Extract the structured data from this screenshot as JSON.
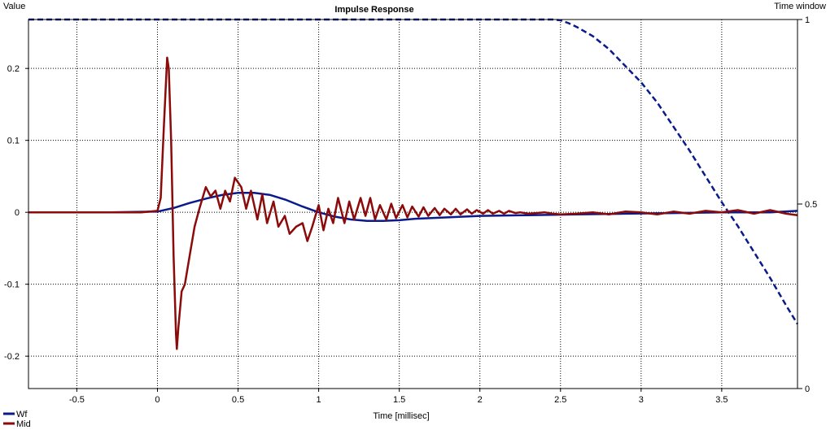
{
  "chart_data": {
    "type": "line",
    "title": "Impulse Response",
    "xlabel": "Time [millisec]",
    "ylabel": "Value",
    "y2label": "Time window",
    "xlim": [
      -0.8,
      3.97
    ],
    "ylim": [
      -0.245,
      0.268
    ],
    "y2lim": [
      0,
      1
    ],
    "x_ticks": [
      -0.5,
      0,
      0.5,
      1,
      1.5,
      2,
      2.5,
      3,
      3.5
    ],
    "x_tick_labels": [
      "-0.5",
      "0",
      "0.5",
      "1",
      "1.5",
      "2",
      "2.5",
      "3",
      "3.5"
    ],
    "y_ticks": [
      0.2,
      0.1,
      0,
      -0.1,
      -0.2
    ],
    "y_tick_labels": [
      "0.2",
      "0.1",
      "0",
      "-0.1",
      "-0.2"
    ],
    "y2_ticks": [
      1,
      0.5,
      0
    ],
    "y2_tick_labels": [
      "1",
      "0.5",
      "0"
    ],
    "grid": true,
    "legend_position": "bottom-left",
    "colors": {
      "window": "#0a1a8a",
      "wf": "#0a1a8a",
      "mid": "#8b0a0a",
      "grid": "#000000",
      "frame": "#000000"
    },
    "series": [
      {
        "name": "Time window",
        "axis": "right",
        "style": "dashed",
        "color": "#0a1a8a",
        "x": [
          -0.8,
          2.45,
          2.5,
          2.55,
          2.6,
          2.7,
          2.8,
          2.9,
          3.0,
          3.1,
          3.2,
          3.3,
          3.4,
          3.5,
          3.6,
          3.7,
          3.8,
          3.9,
          3.97
        ],
        "y": [
          1.0,
          1.0,
          0.998,
          0.99,
          0.98,
          0.955,
          0.92,
          0.875,
          0.83,
          0.775,
          0.71,
          0.645,
          0.575,
          0.505,
          0.44,
          0.37,
          0.3,
          0.225,
          0.175
        ]
      },
      {
        "name": "Wf",
        "axis": "left",
        "style": "solid",
        "color": "#0a1a8a",
        "x": [
          -0.8,
          -0.3,
          0.0,
          0.1,
          0.2,
          0.3,
          0.4,
          0.5,
          0.6,
          0.7,
          0.8,
          0.9,
          1.0,
          1.1,
          1.2,
          1.3,
          1.4,
          1.5,
          1.6,
          1.8,
          2.0,
          2.3,
          2.6,
          2.9,
          3.2,
          3.5,
          3.8,
          3.97
        ],
        "y": [
          0.0,
          0.0,
          0.001,
          0.006,
          0.013,
          0.019,
          0.024,
          0.027,
          0.027,
          0.024,
          0.017,
          0.008,
          0.0,
          -0.006,
          -0.01,
          -0.012,
          -0.012,
          -0.011,
          -0.009,
          -0.007,
          -0.005,
          -0.004,
          -0.003,
          -0.002,
          -0.001,
          0.0,
          0.0,
          0.002
        ]
      },
      {
        "name": "Mid",
        "axis": "left",
        "style": "solid",
        "color": "#8b0a0a",
        "x": [
          -0.8,
          -0.3,
          -0.1,
          0.0,
          0.02,
          0.04,
          0.06,
          0.07,
          0.085,
          0.1,
          0.115,
          0.12,
          0.13,
          0.15,
          0.17,
          0.2,
          0.23,
          0.26,
          0.3,
          0.33,
          0.36,
          0.39,
          0.42,
          0.45,
          0.48,
          0.52,
          0.55,
          0.58,
          0.62,
          0.65,
          0.68,
          0.72,
          0.75,
          0.79,
          0.82,
          0.86,
          0.9,
          0.93,
          0.96,
          0.98,
          1.0,
          1.03,
          1.06,
          1.09,
          1.12,
          1.16,
          1.19,
          1.22,
          1.26,
          1.29,
          1.32,
          1.35,
          1.38,
          1.42,
          1.45,
          1.48,
          1.52,
          1.55,
          1.58,
          1.62,
          1.65,
          1.68,
          1.72,
          1.75,
          1.78,
          1.82,
          1.85,
          1.88,
          1.92,
          1.95,
          1.98,
          2.02,
          2.05,
          2.08,
          2.12,
          2.15,
          2.18,
          2.22,
          2.25,
          2.3,
          2.35,
          2.4,
          2.45,
          2.5,
          2.6,
          2.7,
          2.8,
          2.9,
          3.0,
          3.1,
          3.2,
          3.3,
          3.4,
          3.5,
          3.6,
          3.7,
          3.8,
          3.9,
          3.97
        ],
        "y": [
          0.0,
          0.0,
          0.0,
          0.002,
          0.02,
          0.12,
          0.215,
          0.2,
          0.1,
          -0.06,
          -0.17,
          -0.19,
          -0.16,
          -0.11,
          -0.1,
          -0.06,
          -0.02,
          0.005,
          0.035,
          0.022,
          0.03,
          0.005,
          0.03,
          0.015,
          0.048,
          0.035,
          0.005,
          0.03,
          -0.01,
          0.025,
          -0.015,
          0.015,
          -0.02,
          -0.005,
          -0.03,
          -0.02,
          -0.015,
          -0.04,
          -0.02,
          -0.005,
          0.01,
          -0.025,
          0.005,
          -0.015,
          0.02,
          -0.015,
          0.015,
          -0.01,
          0.02,
          -0.005,
          0.02,
          -0.01,
          0.01,
          -0.01,
          0.012,
          -0.008,
          0.01,
          -0.007,
          0.008,
          -0.006,
          0.007,
          -0.005,
          0.006,
          -0.004,
          0.005,
          -0.003,
          0.005,
          -0.003,
          0.004,
          -0.002,
          0.003,
          -0.002,
          0.003,
          -0.002,
          0.002,
          -0.002,
          0.002,
          -0.001,
          0.0,
          -0.002,
          -0.001,
          0.0,
          -0.002,
          -0.003,
          -0.002,
          0.0,
          -0.003,
          0.001,
          0.0,
          -0.003,
          0.001,
          -0.002,
          0.002,
          0.0,
          0.003,
          -0.002,
          0.003,
          -0.002,
          -0.004
        ]
      }
    ],
    "legend": [
      {
        "name": "Wf",
        "color": "#0a1a8a"
      },
      {
        "name": "Mid",
        "color": "#8b0a0a"
      }
    ]
  }
}
